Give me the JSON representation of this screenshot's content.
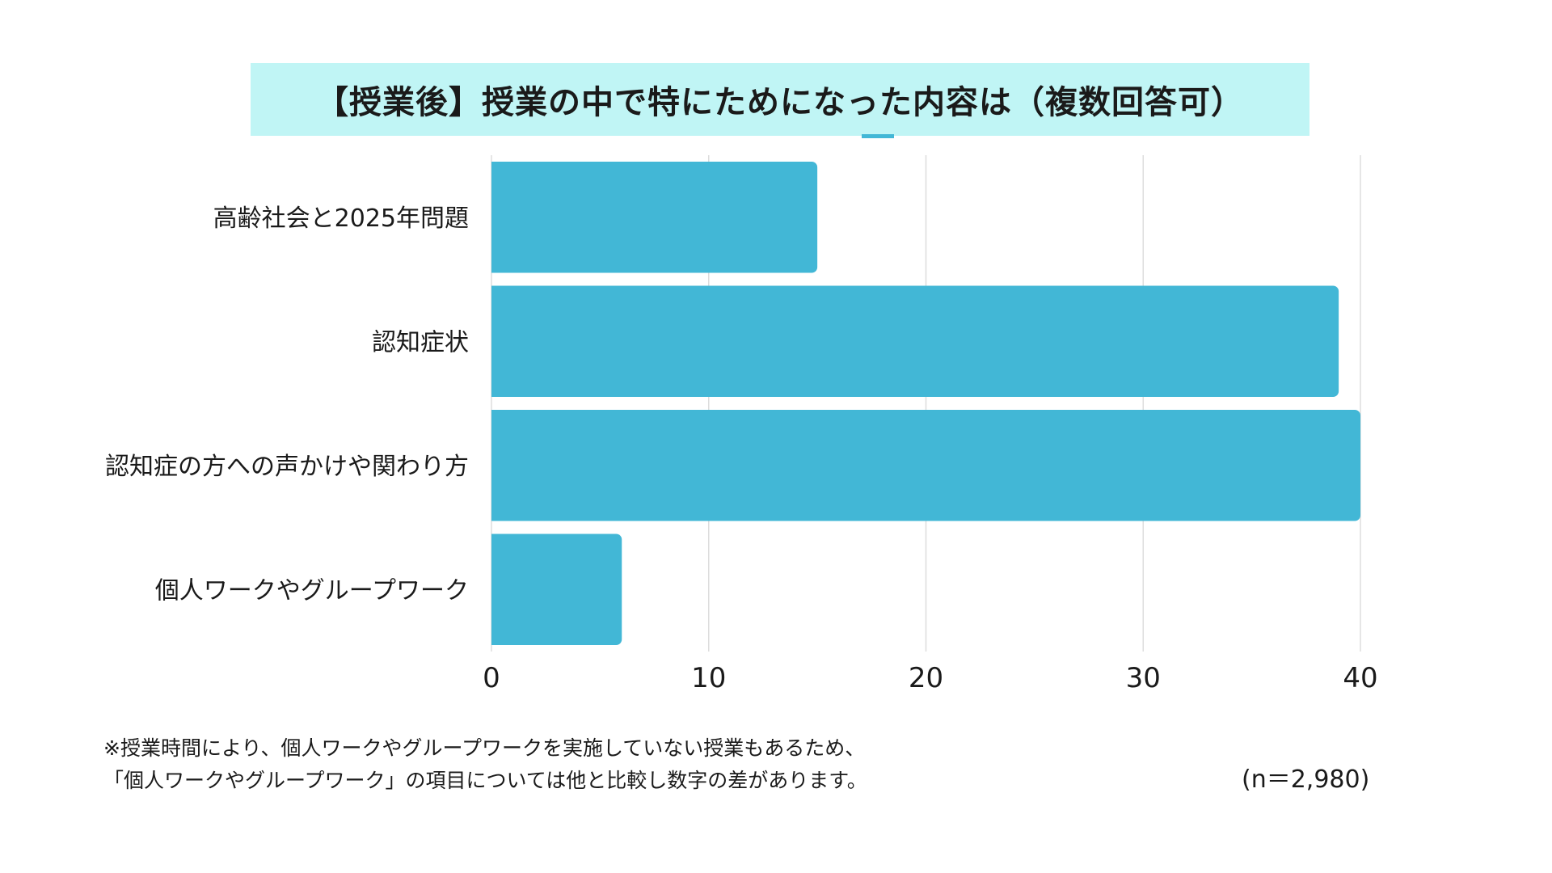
{
  "chart_data": {
    "type": "bar",
    "orientation": "horizontal",
    "title": "【授業後】授業の中で特にためになった内容は（複数回答可）",
    "categories": [
      "高齢社会と2025年問題",
      "認知症状",
      "認知症の方への声かけや関わり方",
      "個人ワークやグループワーク"
    ],
    "values": [
      15,
      39,
      40,
      6
    ],
    "xlabel": "",
    "ylabel": "",
    "xlim": [
      0,
      40
    ],
    "xticks": [
      "0",
      "10",
      "20",
      "30",
      "40"
    ],
    "grid": "vertical",
    "bar_color": "#42b7d6"
  },
  "colors": {
    "title_background": "#c0f5f5",
    "bar": "#42b7d6",
    "grid": "#dddddd"
  },
  "notes": {
    "line1": "※授業時間により、個人ワークやグループワークを実施していない授業もあるため、",
    "line2": "「個人ワークやグループワーク」の項目については他と比較し数字の差があります。"
  },
  "sample_size": "(n＝2,980)"
}
